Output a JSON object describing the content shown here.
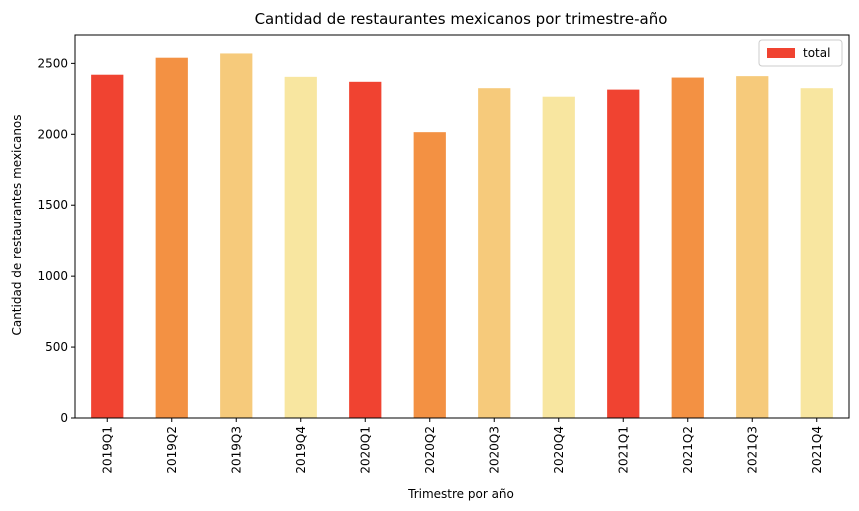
{
  "chart_data": {
    "type": "bar",
    "title": "Cantidad de restaurantes mexicanos por trimestre-año",
    "xlabel": "Trimestre por año",
    "ylabel": "Cantidad de restaurantes mexicanos",
    "categories": [
      "2019Q1",
      "2019Q2",
      "2019Q3",
      "2019Q4",
      "2020Q1",
      "2020Q2",
      "2020Q3",
      "2020Q4",
      "2021Q1",
      "2021Q2",
      "2021Q3",
      "2021Q4"
    ],
    "series": [
      {
        "name": "total",
        "values": [
          2420,
          2540,
          2570,
          2405,
          2370,
          2015,
          2325,
          2265,
          2315,
          2400,
          2410,
          2325
        ]
      }
    ],
    "bar_colors": [
      "#f04331",
      "#f39143",
      "#f6ca7b",
      "#f8e6a0",
      "#f04331",
      "#f39143",
      "#f6ca7b",
      "#f8e6a0",
      "#f04331",
      "#f39143",
      "#f6ca7b",
      "#f8e6a0"
    ],
    "yticks": [
      0,
      500,
      1000,
      1500,
      2000,
      2500
    ],
    "ylim": [
      0,
      2700
    ],
    "grid": false,
    "legend_position": "top-right"
  }
}
